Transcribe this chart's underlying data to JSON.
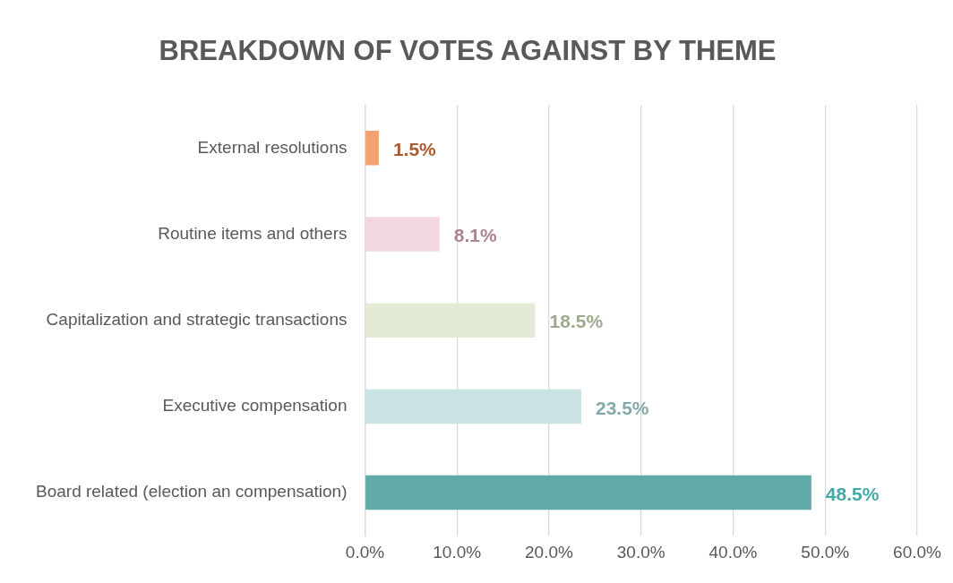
{
  "chart_data": {
    "type": "bar",
    "orientation": "horizontal",
    "title": "BREAKDOWN OF VOTES AGAINST BY THEME",
    "categories": [
      "External resolutions",
      "Routine items and others",
      "Capitalization and strategic transactions",
      "Executive compensation",
      "Board related (election an compensation)"
    ],
    "values": [
      1.5,
      8.1,
      18.5,
      23.5,
      48.5
    ],
    "colors": [
      "#f4a070",
      "#f2d7de",
      "#e3ebd7",
      "#c9e3e4",
      "#62aaa8"
    ],
    "value_labels": [
      "1.5%",
      "8.1%",
      "18.5%",
      "23.5%",
      "48.5%"
    ],
    "xlim": [
      0,
      60
    ],
    "xticks": [
      {
        "value": 0,
        "label": "0.0%"
      },
      {
        "value": 10,
        "label": "10.0%"
      },
      {
        "value": 20,
        "label": "20.0%"
      },
      {
        "value": 30,
        "label": "30.0%"
      },
      {
        "value": 40,
        "label": "40.0%"
      },
      {
        "value": 50,
        "label": "50.0%"
      },
      {
        "value": 60,
        "label": "60.0%"
      }
    ],
    "grid": "x"
  }
}
